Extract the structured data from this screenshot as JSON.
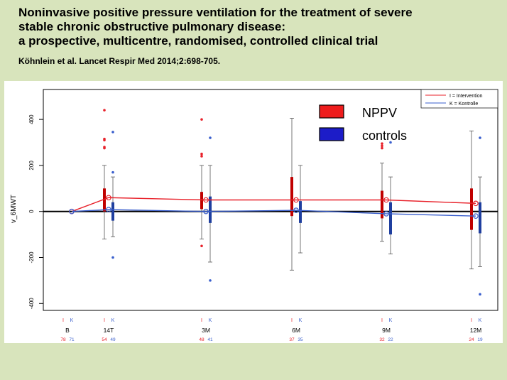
{
  "slide": {
    "title_line1": "Noninvasive positive pressure ventilation for the treatment of severe",
    "title_line2": "stable chronic obstructive pulmonary disease:",
    "title_line3": "a prospective, multicentre, randomised, controlled clinical trial",
    "citation": "Köhnlein et al. Lancet Respir Med 2014;2:698-705."
  },
  "legend_small": {
    "items": [
      {
        "label": "I = Intervention",
        "color": "#e8212a"
      },
      {
        "label": "K = Kontrolle",
        "color": "#3a5fcd"
      }
    ]
  },
  "legend_big": {
    "items": [
      {
        "label": "NPPV",
        "color": "#ee1c1c"
      },
      {
        "label": "controls",
        "color": "#1c1cc8"
      }
    ]
  },
  "chart_data": {
    "type": "line",
    "ylabel": "v_6MWT",
    "ylim": [
      -430,
      530
    ],
    "yticks": [
      -400,
      -200,
      0,
      200,
      400
    ],
    "categories": [
      "B",
      "14T",
      "3M",
      "6M",
      "9M",
      "12M"
    ],
    "group_labels": [
      "I",
      "K"
    ],
    "counts": {
      "I": [
        "78",
        "54",
        "48",
        "37",
        "32",
        "24"
      ],
      "K": [
        "71",
        "49",
        "41",
        "35",
        "22",
        "19"
      ]
    },
    "series": [
      {
        "name": "I = Intervention",
        "color": "#e8212a",
        "values": [
          0,
          60,
          50,
          50,
          50,
          35
        ]
      },
      {
        "name": "K = Kontrolle",
        "color": "#3a5fcd",
        "values": [
          0,
          8,
          0,
          5,
          -10,
          -20
        ]
      }
    ],
    "boxes": {
      "I": [
        {
          "q1": 0,
          "q3": 0,
          "whisker_low": 0,
          "whisker_high": 0,
          "outliers": []
        },
        {
          "q1": 0,
          "q3": 100,
          "whisker_low": -120,
          "whisker_high": 200,
          "outliers": [
            440,
            315,
            310,
            280,
            275
          ]
        },
        {
          "q1": 10,
          "q3": 85,
          "whisker_low": -120,
          "whisker_high": 200,
          "outliers": [
            400,
            250,
            240,
            -150
          ]
        },
        {
          "q1": -20,
          "q3": 150,
          "whisker_low": -255,
          "whisker_high": 405,
          "outliers": []
        },
        {
          "q1": -30,
          "q3": 90,
          "whisker_low": -130,
          "whisker_high": 210,
          "outliers": [
            295,
            285,
            275
          ]
        },
        {
          "q1": -80,
          "q3": 100,
          "whisker_low": -250,
          "whisker_high": 350,
          "outliers": []
        }
      ],
      "K": [
        {
          "q1": 0,
          "q3": 0,
          "whisker_low": 0,
          "whisker_high": 0,
          "outliers": []
        },
        {
          "q1": -40,
          "q3": 40,
          "whisker_low": -110,
          "whisker_high": 150,
          "outliers": [
            345,
            170,
            -200
          ]
        },
        {
          "q1": -50,
          "q3": 65,
          "whisker_low": -220,
          "whisker_high": 200,
          "outliers": [
            320,
            -300
          ]
        },
        {
          "q1": -50,
          "q3": 45,
          "whisker_low": -180,
          "whisker_high": 200,
          "outliers": []
        },
        {
          "q1": -100,
          "q3": 40,
          "whisker_low": -185,
          "whisker_high": 150,
          "outliers": [
            300
          ]
        },
        {
          "q1": -95,
          "q3": 40,
          "whisker_low": -240,
          "whisker_high": 150,
          "outliers": [
            320,
            -360
          ]
        }
      ]
    }
  }
}
